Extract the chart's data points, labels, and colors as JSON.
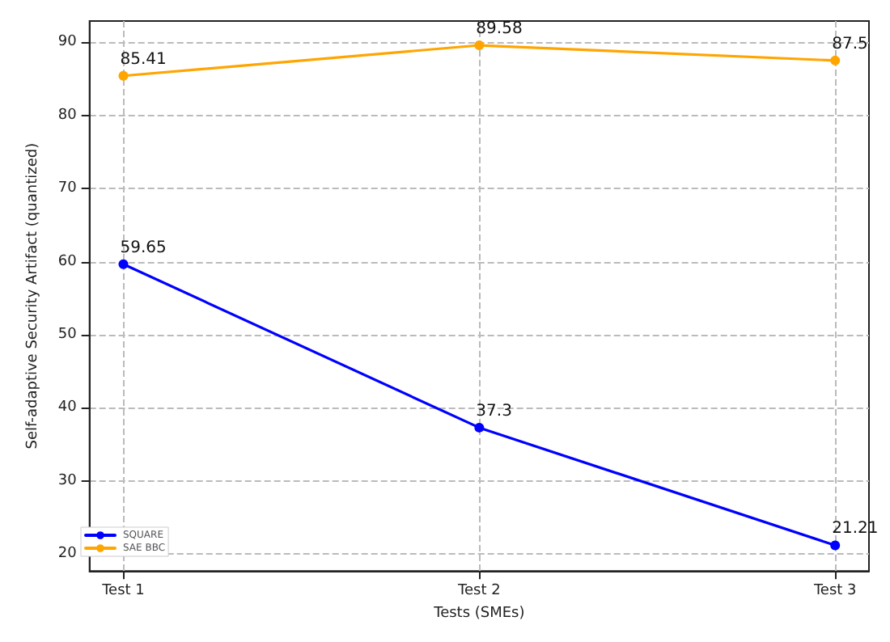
{
  "chart_data": {
    "type": "line",
    "xlabel": "Tests (SMEs)",
    "ylabel": "Self-adaptive Security Artifact (quantized)",
    "categories": [
      "Test 1",
      "Test 2",
      "Test 3"
    ],
    "series": [
      {
        "name": "SQUARE",
        "color": "#0000ff",
        "values": [
          59.65,
          37.3,
          21.21
        ]
      },
      {
        "name": "SAE BBC",
        "color": "#ffa500",
        "values": [
          85.41,
          89.58,
          87.5
        ]
      }
    ],
    "ylim": [
      17.7,
      92.9
    ],
    "yticks": [
      20,
      30,
      40,
      50,
      60,
      70,
      80,
      90
    ],
    "grid": true,
    "legend": "bottom left",
    "marker": "circle",
    "line_style": "solid",
    "data_labels": true
  }
}
